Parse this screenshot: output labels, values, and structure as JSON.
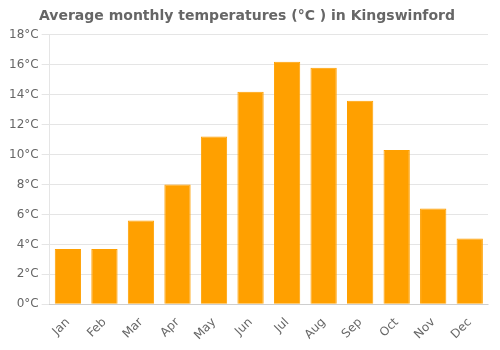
{
  "chart_data": {
    "type": "bar",
    "title": "Average monthly temperatures (°C ) in Kingswinford",
    "categories": [
      "Jan",
      "Feb",
      "Mar",
      "Apr",
      "May",
      "Jun",
      "Jul",
      "Aug",
      "Sep",
      "Oct",
      "Nov",
      "Dec"
    ],
    "values": [
      3.7,
      3.7,
      5.6,
      8.0,
      11.2,
      14.2,
      16.2,
      15.8,
      13.6,
      10.3,
      6.4,
      4.4
    ],
    "color": "#FFA000",
    "ylim": [
      0,
      18
    ],
    "yticks": [
      {
        "value": 0,
        "label": "0°C"
      },
      {
        "value": 2,
        "label": "2°C"
      },
      {
        "value": 4,
        "label": "4°C"
      },
      {
        "value": 6,
        "label": "6°C"
      },
      {
        "value": 8,
        "label": "8°C"
      },
      {
        "value": 10,
        "label": "10°C"
      },
      {
        "value": 12,
        "label": "12°C"
      },
      {
        "value": 14,
        "label": "14°C"
      },
      {
        "value": 16,
        "label": "16°C"
      },
      {
        "value": 18,
        "label": "18°C"
      }
    ],
    "grid": true
  }
}
